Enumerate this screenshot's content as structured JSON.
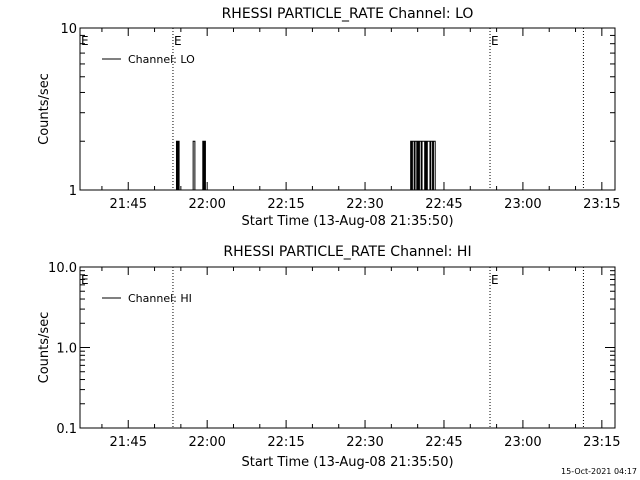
{
  "timestamp": "15-Oct-2021 04:17",
  "chart_data": [
    {
      "type": "line",
      "title": "RHESSI PARTICLE_RATE Channel: LO",
      "xlabel": "Start Time (13-Aug-08 21:35:50)",
      "ylabel": "Counts/sec",
      "yscale": "log",
      "xlim": [
        "21:35:50",
        "23:17:30"
      ],
      "ylim": [
        1,
        10
      ],
      "x_ticks": [
        "21:45",
        "22:00",
        "22:15",
        "22:30",
        "22:45",
        "23:00",
        "23:15"
      ],
      "y_ticks": [
        "1",
        "10"
      ],
      "legend": {
        "label": "Channel: LO",
        "position": "top-left"
      },
      "event_markers": [
        {
          "time": "21:53:30",
          "label": "E"
        },
        {
          "time": "22:53:45",
          "label": "E"
        },
        {
          "time": "23:11:30",
          "label": ""
        }
      ],
      "left_marker_label": "E",
      "series": [
        {
          "name": "Channel: LO",
          "x": [
            "21:54:00",
            "21:54:10",
            "21:54:20",
            "21:54:30",
            "21:54:40",
            "21:57:10",
            "21:57:20",
            "21:57:30",
            "21:57:40",
            "21:59:00",
            "21:59:10",
            "21:59:20",
            "21:59:30",
            "21:59:40",
            "22:38:30",
            "22:38:40",
            "22:38:50",
            "22:39:00",
            "22:39:10",
            "22:39:20",
            "22:39:30",
            "22:39:40",
            "22:39:50",
            "22:40:00",
            "22:40:10",
            "22:40:20",
            "22:40:30",
            "22:40:40",
            "22:40:50",
            "22:41:00",
            "22:41:10",
            "22:41:20",
            "22:41:30",
            "22:41:40",
            "22:41:50",
            "22:42:00",
            "22:42:10",
            "22:42:20",
            "22:42:30",
            "22:42:40",
            "22:42:50",
            "22:43:00",
            "22:43:10",
            "22:43:20",
            "22:43:30"
          ],
          "y": [
            1,
            2,
            1,
            2,
            1,
            1,
            2,
            2,
            1,
            1,
            2,
            1,
            2,
            1,
            1,
            2,
            1,
            2,
            2,
            1,
            2,
            2,
            1,
            2,
            1,
            2,
            2,
            1,
            2,
            2,
            2,
            1,
            2,
            1,
            2,
            2,
            2,
            1,
            2,
            2,
            1,
            2,
            2,
            1,
            1
          ]
        }
      ]
    },
    {
      "type": "line",
      "title": "RHESSI PARTICLE_RATE Channel: HI",
      "xlabel": "Start Time (13-Aug-08 21:35:50)",
      "ylabel": "Counts/sec",
      "yscale": "log",
      "xlim": [
        "21:35:50",
        "23:17:30"
      ],
      "ylim": [
        0.1,
        10
      ],
      "x_ticks": [
        "21:45",
        "22:00",
        "22:15",
        "22:30",
        "22:45",
        "23:00",
        "23:15"
      ],
      "y_ticks": [
        "0.1",
        "1.0",
        "10.0"
      ],
      "legend": {
        "label": "Channel: HI",
        "position": "top-left"
      },
      "event_markers": [
        {
          "time": "21:53:30",
          "label": ""
        },
        {
          "time": "22:53:45",
          "label": "E"
        },
        {
          "time": "23:11:30",
          "label": ""
        }
      ],
      "left_marker_label": "E",
      "series": [
        {
          "name": "Channel: HI",
          "x": [],
          "y": []
        }
      ]
    }
  ]
}
